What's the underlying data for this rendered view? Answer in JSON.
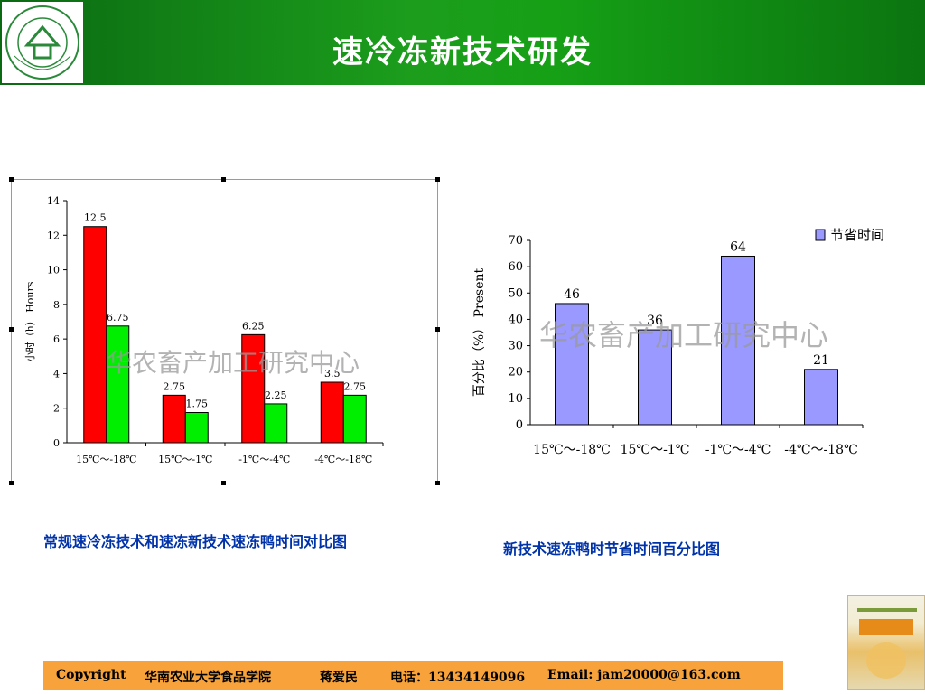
{
  "header": {
    "title": "速冷冻新技术研发",
    "logo_icon": "university-seal-icon"
  },
  "charts": {
    "left": {
      "caption": "常规速冷冻技术和速冻新技术速冻鸭时间对比图",
      "watermark": "华农畜产加工研究中心"
    },
    "right": {
      "caption": "新技术速冻鸭时节省时间百分比图",
      "watermark": "华农畜产加工研究中心"
    }
  },
  "chart_data": [
    {
      "type": "bar",
      "categories": [
        "15℃～-18℃",
        "15℃～-1℃",
        "-1℃～-4℃",
        "-4℃～-18℃"
      ],
      "series": [
        {
          "values": [
            12.5,
            2.75,
            6.25,
            3.5
          ],
          "labels": [
            "12.5",
            "2.75",
            "6.25",
            "3.5"
          ],
          "color": "#ff0000"
        },
        {
          "values": [
            6.75,
            1.75,
            2.25,
            2.75
          ],
          "labels": [
            "6.75",
            "1.75",
            "2.25",
            "2.75"
          ],
          "color": "#00ee00"
        }
      ],
      "ylabel": "小时（h） Hours",
      "ylim": [
        0,
        14
      ],
      "yticks": [
        "0",
        "2",
        "4",
        "6",
        "8",
        "10",
        "12",
        "14"
      ],
      "legend": "none"
    },
    {
      "type": "bar",
      "categories": [
        "15℃～-18℃",
        "15℃～-1℃",
        "-1℃～-4℃",
        "-4℃～-18℃"
      ],
      "series": [
        {
          "name": "节省时间",
          "values": [
            46,
            36,
            64,
            21
          ],
          "labels": [
            "46",
            "36",
            "64",
            "21"
          ],
          "color": "#9999ff"
        }
      ],
      "ylabel": "百分比（%） Present",
      "ylim": [
        0,
        70
      ],
      "yticks": [
        "0",
        "10",
        "20",
        "30",
        "40",
        "50",
        "60",
        "70"
      ],
      "legend": "top-right"
    }
  ],
  "footer": {
    "copyright": "Copyright",
    "school": "华南农业大学食品学院",
    "person": "蒋爱民",
    "phone": "电话：13434149096",
    "email": "Email:   jam20000@163.com"
  },
  "book_icon": "book-cover-icon"
}
